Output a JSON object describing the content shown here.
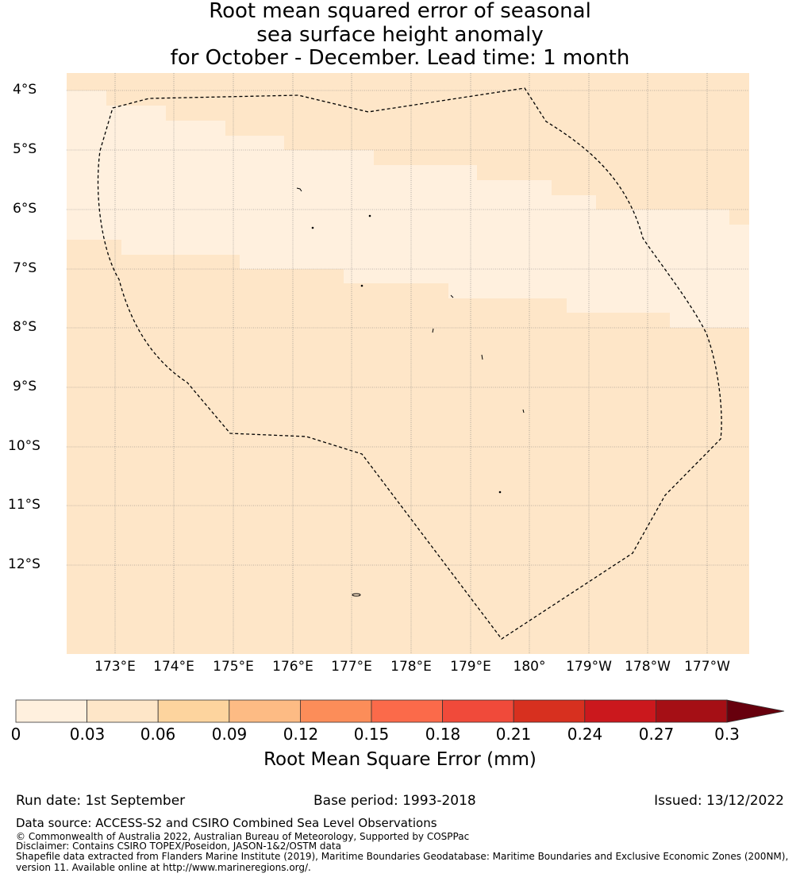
{
  "title": {
    "line1": "Root mean squared error of seasonal",
    "line2": "sea surface height anomaly",
    "line3": "for October - December. Lead time: 1 month"
  },
  "lat_labels": [
    "4°S",
    "5°S",
    "6°S",
    "7°S",
    "8°S",
    "9°S",
    "10°S",
    "11°S",
    "12°S"
  ],
  "lon_labels": [
    "173°E",
    "174°E",
    "175°E",
    "176°E",
    "177°E",
    "178°E",
    "179°E",
    "180°",
    "179°W",
    "178°W",
    "177°W"
  ],
  "colorbar": {
    "title": "Root Mean Square Error (mm)",
    "tick_labels": [
      "0",
      "0.03",
      "0.06",
      "0.09",
      "0.12",
      "0.15",
      "0.18",
      "0.21",
      "0.24",
      "0.27",
      "0.3"
    ],
    "colors": [
      "#fff0de",
      "#fee6c8",
      "#fdd49e",
      "#fdbb84",
      "#fc8d59",
      "#fb6a4a",
      "#f04a3a",
      "#d7301f",
      "#cb181d",
      "#a50f15"
    ],
    "extend_color": "#67000d"
  },
  "footer": {
    "run_date": "Run date: 1st September",
    "base_period": "Base period: 1993-2018",
    "issued": "Issued: 13/12/2022",
    "data_source": "Data source: ACCESS-S2 and CSIRO Combined Sea Level Observations",
    "copyright": "© Commonwealth of Australia 2022, Australian Bureau of Meteorology, Supported by COSPPac",
    "disclaimer": "Disclaimer: Contains CSIRO TOPEX/Poseidon, JASON-1&2/OSTM data",
    "shapefile1": "Shapefile data extracted from Flanders Marine Institute (2019), Maritime Boundaries Geodatabase: Maritime Boundaries and Exclusive Economic Zones (200NM),",
    "shapefile2": "version 11. Available online at http://www.marineregions.org/."
  }
}
